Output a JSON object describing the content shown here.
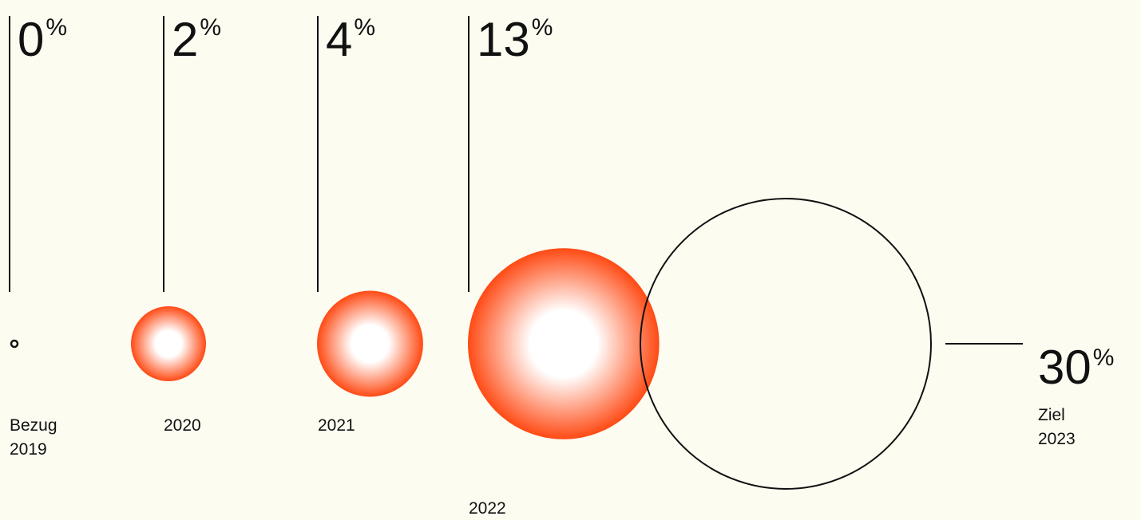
{
  "chart_data": {
    "type": "bubble",
    "unit": "%",
    "colors": {
      "bubble_edge": "#FF4A14",
      "bubble_center": "#FFFFFF",
      "line": "#111111",
      "background": "#FCFCF1"
    },
    "points": [
      {
        "id": "2019",
        "value": 0,
        "value_text": "0",
        "label_lines": [
          "Bezug",
          "2019"
        ],
        "style": "outline"
      },
      {
        "id": "2020",
        "value": 2,
        "value_text": "2",
        "label_lines": [
          "2020"
        ],
        "style": "gradient"
      },
      {
        "id": "2021",
        "value": 4,
        "value_text": "4",
        "label_lines": [
          "2021"
        ],
        "style": "gradient"
      },
      {
        "id": "2022",
        "value": 13,
        "value_text": "13",
        "label_lines": [
          "2022"
        ],
        "style": "gradient"
      },
      {
        "id": "2023",
        "value": 30,
        "value_text": "30",
        "label_lines": [
          "Ziel",
          "2023"
        ],
        "style": "outline-target"
      }
    ]
  }
}
